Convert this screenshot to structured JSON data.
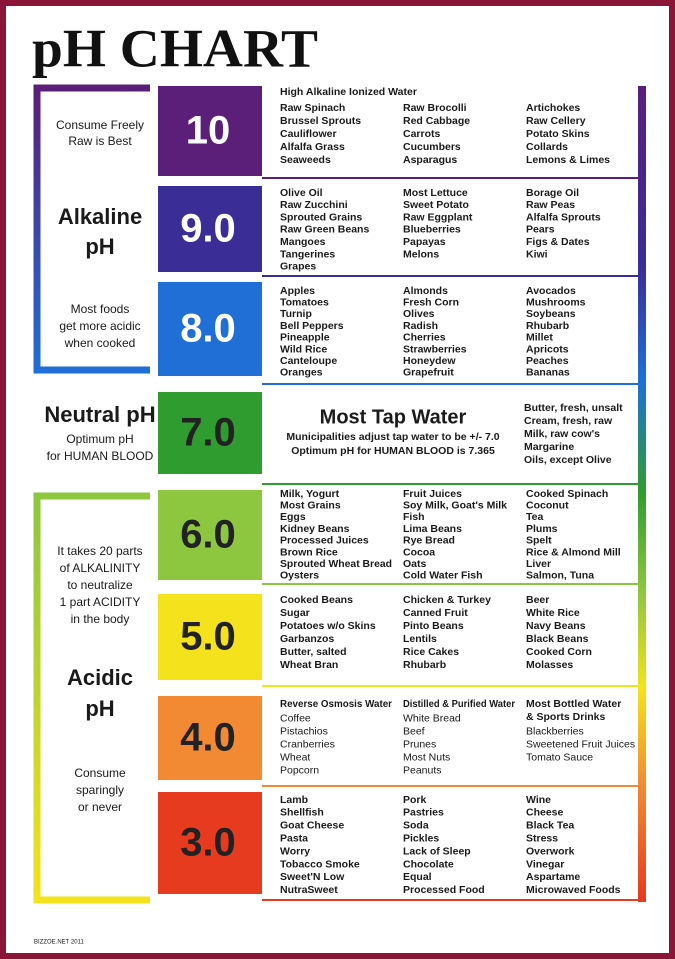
{
  "title": "pH CHART",
  "footer": "BIZZOE.NET 2011",
  "side_notes": [
    {
      "lines": [
        "Consume Freely",
        "Raw is Best"
      ]
    },
    {
      "lines": [
        "Alkaline",
        "pH"
      ]
    },
    {
      "lines": [
        "Most foods",
        "get more acidic",
        "when cooked"
      ]
    },
    {
      "lines": [
        "Neutral pH"
      ]
    },
    {
      "lines": [
        "Optimum pH",
        "for HUMAN BLOOD"
      ]
    },
    {
      "lines": [
        "It takes 20 parts",
        "of ALKALINITY",
        "to neutralize",
        "1 part ACIDITY",
        "in the body"
      ]
    },
    {
      "lines": [
        "Acidic",
        "pH"
      ]
    },
    {
      "lines": [
        "Consume",
        "sparingly",
        "or never"
      ]
    }
  ],
  "levels": [
    {
      "ph": "10",
      "color": "#5b1e79",
      "heading": "High Alkaline Ionized Water",
      "columns": [
        {
          "items": [
            "Raw Spinach",
            "Brussel Sprouts",
            "Cauliflower",
            "Alfalfa Grass",
            "Seaweeds"
          ]
        },
        {
          "items": [
            "Raw Brocolli",
            "Red Cabbage",
            "Carrots",
            "Cucumbers",
            "Asparagus"
          ]
        },
        {
          "items": [
            "Artichokes",
            "Raw Cellery",
            "Potato Skins",
            "Collards",
            "Lemons & Limes"
          ]
        }
      ]
    },
    {
      "ph": "9.0",
      "color": "#3a2d96",
      "columns": [
        {
          "items": [
            "Olive Oil",
            "Raw Zucchini",
            "Sprouted Grains",
            "Raw Green Beans",
            "Mangoes",
            "Tangerines",
            "Grapes"
          ]
        },
        {
          "items": [
            "Most Lettuce",
            "Sweet Potato",
            "Raw Eggplant",
            "Blueberries",
            "Papayas",
            "Melons"
          ]
        },
        {
          "items": [
            "Borage Oil",
            "Raw Peas",
            "Alfalfa Sprouts",
            "Pears",
            "Figs & Dates",
            "Kiwi"
          ]
        }
      ]
    },
    {
      "ph": "8.0",
      "color": "#1f6fd6",
      "columns": [
        {
          "items": [
            "Apples",
            "Tomatoes",
            "Turnip",
            "Bell Peppers",
            "Pineapple",
            "Wild Rice",
            "Canteloupe",
            "Oranges"
          ]
        },
        {
          "items": [
            "Almonds",
            "Fresh Corn",
            "Olives",
            "Radish",
            "Cherries",
            "Strawberries",
            "Honeydew",
            "Grapefruit"
          ]
        },
        {
          "items": [
            "Avocados",
            "Mushrooms",
            "Soybeans",
            "Rhubarb",
            "Millet",
            "Apricots",
            "Peaches",
            "Bananas"
          ]
        }
      ]
    },
    {
      "ph": "7.0",
      "color": "#2f9c2f",
      "heading": "Most Tap Water",
      "notes": [
        "Municipalities adjust tap water to be +/- 7.0",
        "Optimum pH for HUMAN BLOOD is 7.365"
      ],
      "columns": [
        {
          "items": [
            "Butter, fresh, unsalt",
            "Cream, fresh, raw",
            "Milk, raw cow's",
            "Margarine",
            "Oils, except Olive"
          ]
        }
      ]
    },
    {
      "ph": "6.0",
      "color": "#8dc63f",
      "columns": [
        {
          "items": [
            "Milk, Yogurt",
            "Most Grains",
            "Eggs",
            "Kidney Beans",
            "Processed Juices",
            "Brown Rice",
            "Sprouted Wheat Bread",
            "Oysters"
          ]
        },
        {
          "items": [
            "Fruit Juices",
            "Soy Milk, Goat's Milk",
            "Fish",
            "Lima Beans",
            "Rye Bread",
            "Cocoa",
            "Oats",
            "Cold Water Fish"
          ]
        },
        {
          "items": [
            "Cooked Spinach",
            "Coconut",
            "Tea",
            "Plums",
            "Spelt",
            "Rice & Almond Mill",
            "Liver",
            "Salmon, Tuna"
          ]
        }
      ]
    },
    {
      "ph": "5.0",
      "color": "#f4e21c",
      "columns": [
        {
          "items": [
            "Cooked Beans",
            "Sugar",
            "Potatoes w/o Skins",
            "Garbanzos",
            "Butter, salted",
            "Wheat Bran"
          ]
        },
        {
          "items": [
            "Chicken & Turkey",
            "Canned Fruit",
            "Pinto Beans",
            "Lentils",
            "Rice Cakes",
            "Rhubarb"
          ]
        },
        {
          "items": [
            "Beer",
            "White Rice",
            "Navy Beans",
            "Black Beans",
            "Cooked Corn",
            "Molasses"
          ]
        }
      ]
    },
    {
      "ph": "4.0",
      "color": "#f18a32",
      "columns": [
        {
          "header": [
            "Reverse Osmosis Water"
          ],
          "items": [
            "Coffee",
            "Pistachios",
            "Cranberries",
            "Wheat",
            "Popcorn"
          ]
        },
        {
          "header": [
            "Distilled & Purified Water"
          ],
          "items": [
            "White Bread",
            "Beef",
            "Prunes",
            "Most Nuts",
            "Peanuts"
          ]
        },
        {
          "header": [
            "Most Bottled Water",
            "& Sports Drinks"
          ],
          "items": [
            "Blackberries",
            "Sweetened Fruit Juices",
            "Tomato Sauce"
          ]
        }
      ]
    },
    {
      "ph": "3.0",
      "color": "#e63b1f",
      "columns": [
        {
          "items": [
            "Lamb",
            "Shellfish",
            "Goat Cheese",
            "Pasta",
            "Worry",
            "Tobacco Smoke",
            "Sweet'N Low",
            "NutraSweet"
          ]
        },
        {
          "items": [
            "Pork",
            "Pastries",
            "Soda",
            "Pickles",
            "Lack of Sleep",
            "Chocolate",
            "Equal",
            "Processed Food"
          ]
        },
        {
          "items": [
            "Wine",
            "Cheese",
            "Black Tea",
            "Stress",
            "Overwork",
            "Vinegar",
            "Aspartame",
            "Microwaved Foods"
          ]
        }
      ]
    }
  ]
}
